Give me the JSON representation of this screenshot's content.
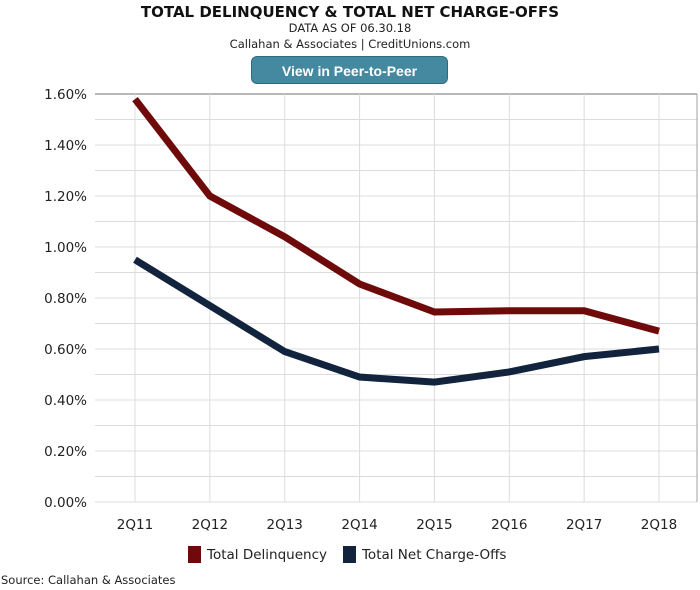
{
  "header": {
    "title": "TOTAL DELINQUENCY & TOTAL NET CHARGE-OFFS",
    "data_as_of": "DATA AS OF 06.30.18",
    "credit": "Callahan & Associates | CreditUnions.com",
    "button_label": "View in Peer-to-Peer"
  },
  "source": "Source: Callahan & Associates",
  "chart_data": {
    "type": "line",
    "title": "TOTAL DELINQUENCY & TOTAL NET CHARGE-OFFS",
    "categories": [
      "2Q11",
      "2Q12",
      "2Q13",
      "2Q14",
      "2Q15",
      "2Q16",
      "2Q17",
      "2Q18"
    ],
    "yticks": [
      "0.00%",
      "0.20%",
      "0.40%",
      "0.60%",
      "0.80%",
      "1.00%",
      "1.20%",
      "1.40%",
      "1.60%"
    ],
    "ylim": [
      0,
      1.6
    ],
    "ylabel": "",
    "xlabel": "",
    "grid": true,
    "legend_position": "bottom",
    "series": [
      {
        "name": "Total Delinquency",
        "color": "#6e0a0a",
        "values": [
          1.58,
          1.2,
          1.04,
          0.855,
          0.745,
          0.75,
          0.75,
          0.67
        ]
      },
      {
        "name": "Total Net Charge-Offs",
        "color": "#12233d",
        "values": [
          0.95,
          0.77,
          0.59,
          0.49,
          0.47,
          0.51,
          0.57,
          0.6
        ]
      }
    ]
  }
}
